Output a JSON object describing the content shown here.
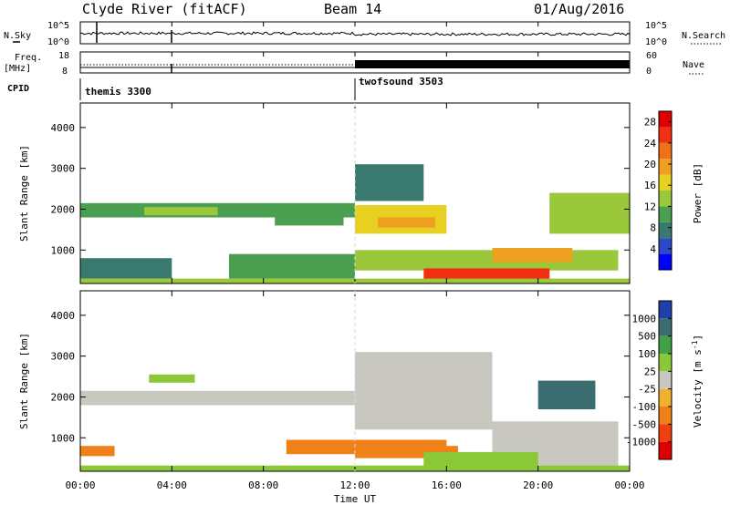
{
  "header": {
    "station": "Clyde River (fitACF)",
    "beam": "Beam 14",
    "date": "01/Aug/2016"
  },
  "top_panels": {
    "nsky_label": "N.Sky",
    "nsky_ticks": [
      "10^5",
      "10^0"
    ],
    "nsearch_label": "N.Search",
    "nsearch_ticks": [
      "10^5",
      "10^0"
    ],
    "freq_label_1": "Freq.",
    "freq_label_2": "[MHz]",
    "freq_ticks": [
      "18",
      "8"
    ],
    "nave_label": "Nave",
    "nave_ticks": [
      "60",
      "0"
    ],
    "cpid_label": "CPID",
    "cpid_modes": [
      {
        "name": "themis 3300",
        "start_hour": 0,
        "end_hour": 12
      },
      {
        "name": "twofsound 3503",
        "start_hour": 12,
        "end_hour": 24
      }
    ]
  },
  "x_axis": {
    "label": "Time UT",
    "ticks": [
      "00:00",
      "04:00",
      "08:00",
      "12:00",
      "16:00",
      "20:00",
      "00:00"
    ],
    "range_hours": [
      0,
      24
    ]
  },
  "chart_data": [
    {
      "type": "heatmap",
      "quantity": "Power",
      "ylabel": "Slant Range [km]",
      "ylim": [
        180,
        4600
      ],
      "yticks": [
        "1000",
        "2000",
        "3000",
        "4000"
      ],
      "colorbar_label": "Power [dB]",
      "colorbar_ticks": [
        "4",
        "8",
        "12",
        "16",
        "20",
        "24",
        "28"
      ],
      "colorbar_range": [
        0,
        30
      ],
      "colors": [
        "#0000ff",
        "#2a48c8",
        "#3a7a6e",
        "#4aa050",
        "#9ac83a",
        "#e8d020",
        "#f0a020",
        "#f07018",
        "#f03010",
        "#e00000"
      ],
      "regions": [
        {
          "t": [
            0.0,
            12.0
          ],
          "r": [
            1800,
            2150
          ],
          "v": 9
        },
        {
          "t": [
            2.8,
            6.0
          ],
          "r": [
            1850,
            2050
          ],
          "v": 12
        },
        {
          "t": [
            8.5,
            11.5
          ],
          "r": [
            1600,
            2000
          ],
          "v": 11
        },
        {
          "t": [
            12.0,
            16.0
          ],
          "r": [
            1400,
            2100
          ],
          "v": 15
        },
        {
          "t": [
            13.0,
            15.5
          ],
          "r": [
            1550,
            1800
          ],
          "v": 20
        },
        {
          "t": [
            12.0,
            23.5
          ],
          "r": [
            500,
            1000
          ],
          "v": 13
        },
        {
          "t": [
            15.0,
            20.5
          ],
          "r": [
            250,
            550
          ],
          "v": 24
        },
        {
          "t": [
            18.0,
            21.5
          ],
          "r": [
            700,
            1050
          ],
          "v": 18
        },
        {
          "t": [
            0.0,
            4.0
          ],
          "r": [
            300,
            800
          ],
          "v": 6
        },
        {
          "t": [
            6.5,
            12.0
          ],
          "r": [
            300,
            900
          ],
          "v": 10
        },
        {
          "t": [
            12.0,
            15.0
          ],
          "r": [
            2200,
            3100
          ],
          "v": 8
        },
        {
          "t": [
            20.5,
            24.0
          ],
          "r": [
            1400,
            2400
          ],
          "v": 12
        },
        {
          "t": [
            0.0,
            24.0
          ],
          "r": [
            180,
            300
          ],
          "v": 14
        }
      ]
    },
    {
      "type": "heatmap",
      "quantity": "Velocity",
      "ylabel": "Slant Range [km]",
      "ylim": [
        180,
        4600
      ],
      "yticks": [
        "1000",
        "2000",
        "3000",
        "4000"
      ],
      "colorbar_label": "Velocity [m s^-1]",
      "colorbar_ticks": [
        "1000",
        "500",
        "100",
        "25",
        "-25",
        "-100",
        "-500",
        "-1000"
      ],
      "colors": [
        "#2040a8",
        "#3a6c70",
        "#40a048",
        "#8ac838",
        "#c8c8c0",
        "#f0b030",
        "#f08018",
        "#f04010",
        "#e00000"
      ],
      "regions": [
        {
          "t": [
            0.0,
            12.0
          ],
          "r": [
            1800,
            2150
          ],
          "v": 0
        },
        {
          "t": [
            12.0,
            18.0
          ],
          "r": [
            1200,
            3100
          ],
          "v": 0
        },
        {
          "t": [
            18.0,
            23.5
          ],
          "r": [
            300,
            1400
          ],
          "v": 0
        },
        {
          "t": [
            9.0,
            16.0
          ],
          "r": [
            600,
            950
          ],
          "v": -250
        },
        {
          "t": [
            12.0,
            16.5
          ],
          "r": [
            500,
            800
          ],
          "v": -300
        },
        {
          "t": [
            15.0,
            20.0
          ],
          "r": [
            300,
            650
          ],
          "v": 60
        },
        {
          "t": [
            0.0,
            24.0
          ],
          "r": [
            180,
            320
          ],
          "v": 50
        },
        {
          "t": [
            0.0,
            1.5
          ],
          "r": [
            550,
            800
          ],
          "v": -150
        },
        {
          "t": [
            20.0,
            22.5
          ],
          "r": [
            1700,
            2400
          ],
          "v": 700
        },
        {
          "t": [
            3.0,
            5.0
          ],
          "r": [
            2350,
            2550
          ],
          "v": 80
        }
      ]
    }
  ]
}
